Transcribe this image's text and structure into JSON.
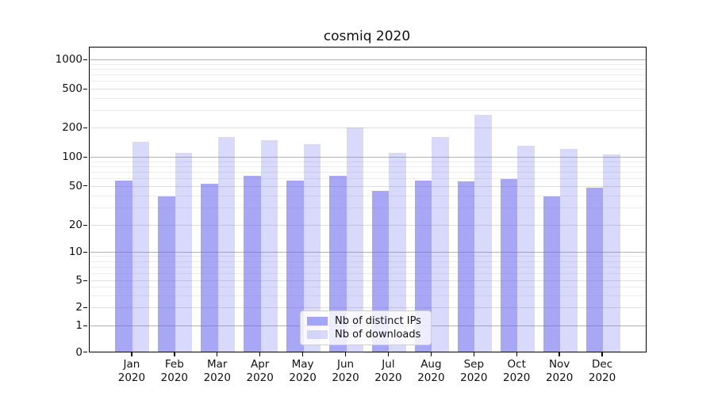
{
  "title": "cosmiq 2020",
  "chart_data": {
    "type": "bar",
    "title": "cosmiq 2020",
    "categories": [
      "Jan 2020",
      "Feb 2020",
      "Mar 2020",
      "Apr 2020",
      "May 2020",
      "Jun 2020",
      "Jul 2020",
      "Aug 2020",
      "Sep 2020",
      "Oct 2020",
      "Nov 2020",
      "Dec 2020"
    ],
    "series": [
      {
        "name": "Nb of distinct IPs",
        "values": [
          57,
          39,
          52,
          64,
          57,
          64,
          44,
          57,
          55,
          59,
          39,
          48
        ],
        "color": "rgba(103,103,240,0.58)"
      },
      {
        "name": "Nb of downloads",
        "values": [
          143,
          110,
          160,
          148,
          135,
          200,
          109,
          160,
          270,
          130,
          120,
          106
        ],
        "color": "rgba(103,103,240,0.25)"
      }
    ],
    "xlabel": "",
    "ylabel": "",
    "yscale": "symlog",
    "yticks": [
      0,
      1,
      2,
      5,
      10,
      20,
      50,
      100,
      200,
      500,
      1000
    ],
    "ylim": [
      0,
      1320
    ],
    "grid": true,
    "legend_position": "lower-center"
  },
  "legend": {
    "items": [
      {
        "label": "Nb of distinct IPs"
      },
      {
        "label": "Nb of downloads"
      }
    ]
  },
  "colors": {
    "bar_ips": "rgba(103,103,240,0.58)",
    "bar_downloads": "rgba(103,103,240,0.25)",
    "grid_minor": "#ececec",
    "grid_major": "#dedede",
    "grid_decade": "#b3b3b3",
    "spine": "#000000",
    "background": "#ffffff"
  }
}
